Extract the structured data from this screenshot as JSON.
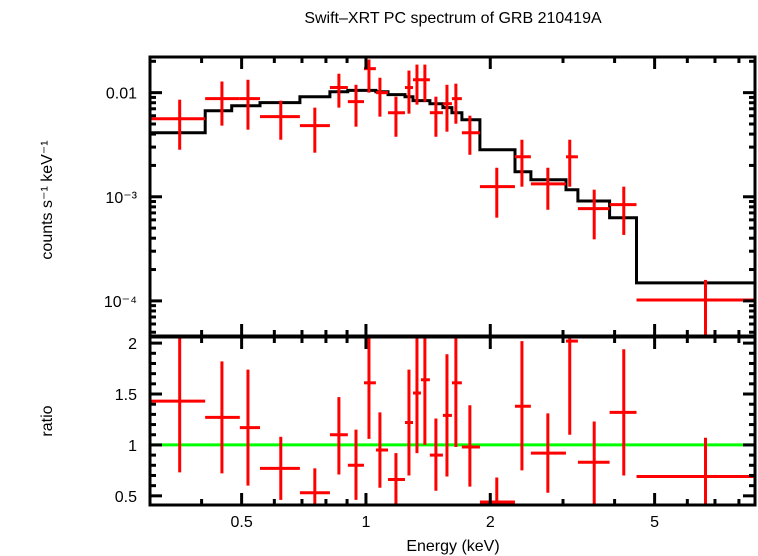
{
  "chart_data": [
    {
      "panel": "spectrum",
      "type": "scatter",
      "title": "Swift–XRT PC spectrum of GRB 210419A",
      "xlabel": "Energy (keV)",
      "ylabel": "counts s⁻¹ keV⁻¹",
      "xscale": "log",
      "yscale": "log",
      "xlim": [
        0.3,
        8.75
      ],
      "ylim": [
        4.6e-05,
        0.022
      ],
      "ytick_labels": [
        {
          "value": 0.01,
          "label": "0.01"
        },
        {
          "value": 0.001,
          "label": "10⁻³"
        },
        {
          "value": 0.0001,
          "label": "10⁻⁴"
        }
      ],
      "series": [
        {
          "name": "data",
          "color": "#ff0000",
          "points": [
            {
              "x": 0.354,
              "xlo": 0.3,
              "xhi": 0.408,
              "y": 0.00562,
              "ylo": 0.00283,
              "yhi": 0.00856
            },
            {
              "x": 0.448,
              "xlo": 0.408,
              "xhi": 0.495,
              "y": 0.00876,
              "ylo": 0.00482,
              "yhi": 0.0128
            },
            {
              "x": 0.518,
              "xlo": 0.495,
              "xhi": 0.554,
              "y": 0.00876,
              "ylo": 0.00441,
              "yhi": 0.0133
            },
            {
              "x": 0.622,
              "xlo": 0.554,
              "xhi": 0.692,
              "y": 0.00588,
              "ylo": 0.00353,
              "yhi": 0.00838
            },
            {
              "x": 0.752,
              "xlo": 0.692,
              "xhi": 0.818,
              "y": 0.00482,
              "ylo": 0.00265,
              "yhi": 0.00718
            },
            {
              "x": 0.86,
              "xlo": 0.818,
              "xhi": 0.904,
              "y": 0.0112,
              "ylo": 0.00718,
              "yhi": 0.0152
            },
            {
              "x": 0.946,
              "xlo": 0.904,
              "xhi": 0.989,
              "y": 0.00819,
              "ylo": 0.00471,
              "yhi": 0.0119
            },
            {
              "x": 1.017,
              "xlo": 0.989,
              "xhi": 1.057,
              "y": 0.017,
              "ylo": 0.01,
              "yhi": 0.0208
            },
            {
              "x": 1.081,
              "xlo": 1.057,
              "xhi": 1.131,
              "y": 0.01,
              "ylo": 0.00588,
              "yhi": 0.0139
            },
            {
              "x": 1.182,
              "xlo": 1.131,
              "xhi": 1.243,
              "y": 0.00642,
              "ylo": 0.00377,
              "yhi": 0.00915
            },
            {
              "x": 1.271,
              "xlo": 1.243,
              "xhi": 1.3,
              "y": 0.0112,
              "ylo": 0.00628,
              "yhi": 0.0163
            },
            {
              "x": 1.329,
              "xlo": 1.3,
              "xhi": 1.359,
              "y": 0.0133,
              "ylo": 0.00767,
              "yhi": 0.0186
            },
            {
              "x": 1.389,
              "xlo": 1.359,
              "xhi": 1.428,
              "y": 0.0133,
              "ylo": 0.00819,
              "yhi": 0.0186
            },
            {
              "x": 1.477,
              "xlo": 1.428,
              "xhi": 1.536,
              "y": 0.00642,
              "ylo": 0.00377,
              "yhi": 0.00915
            },
            {
              "x": 1.571,
              "xlo": 1.536,
              "xhi": 1.615,
              "y": 0.00784,
              "ylo": 0.00422,
              "yhi": 0.0119
            },
            {
              "x": 1.651,
              "xlo": 1.615,
              "xhi": 1.707,
              "y": 0.00876,
              "ylo": 0.00503,
              "yhi": 0.0122
            },
            {
              "x": 1.785,
              "xlo": 1.707,
              "xhi": 1.888,
              "y": 0.00412,
              "ylo": 0.00253,
              "yhi": 0.00601
            },
            {
              "x": 2.074,
              "xlo": 1.888,
              "xhi": 2.295,
              "y": 0.00125,
              "ylo": 0.00063,
              "yhi": 0.0019
            },
            {
              "x": 2.386,
              "xlo": 2.295,
              "xhi": 2.508,
              "y": 0.00242,
              "ylo": 0.00125,
              "yhi": 0.00353
            },
            {
              "x": 2.757,
              "xlo": 2.508,
              "xhi": 3.05,
              "y": 0.00133,
              "ylo": 0.00075,
              "yhi": 0.0019
            },
            {
              "x": 3.115,
              "xlo": 3.05,
              "xhi": 3.26,
              "y": 0.00242,
              "ylo": 0.00125,
              "yhi": 0.00353
            },
            {
              "x": 3.57,
              "xlo": 3.26,
              "xhi": 3.89,
              "y": 0.00077,
              "ylo": 0.00039,
              "yhi": 0.00117
            },
            {
              "x": 4.21,
              "xlo": 3.89,
              "xhi": 4.52,
              "y": 0.00084,
              "ylo": 0.00043,
              "yhi": 0.00125
            },
            {
              "x": 6.64,
              "xlo": 4.52,
              "xhi": 8.75,
              "y": 0.000102,
              "ylo": 4.7e-05,
              "yhi": 0.000159
            }
          ]
        },
        {
          "name": "model",
          "color": "#000000",
          "type": "step",
          "bins": [
            {
              "xlo": 0.3,
              "xhi": 0.408,
              "y": 0.00412
            },
            {
              "xlo": 0.408,
              "xhi": 0.473,
              "y": 0.00671
            },
            {
              "xlo": 0.473,
              "xhi": 0.554,
              "y": 0.0075
            },
            {
              "xlo": 0.554,
              "xhi": 0.692,
              "y": 0.00802
            },
            {
              "xlo": 0.692,
              "xhi": 0.818,
              "y": 0.00915
            },
            {
              "xlo": 0.818,
              "xhi": 0.904,
              "y": 0.0102
            },
            {
              "xlo": 0.904,
              "xhi": 1.057,
              "y": 0.0105
            },
            {
              "xlo": 1.057,
              "xhi": 1.131,
              "y": 0.0102
            },
            {
              "xlo": 1.131,
              "xhi": 1.243,
              "y": 0.00957
            },
            {
              "xlo": 1.243,
              "xhi": 1.3,
              "y": 0.00915
            },
            {
              "xlo": 1.3,
              "xhi": 1.428,
              "y": 0.00838
            },
            {
              "xlo": 1.428,
              "xhi": 1.536,
              "y": 0.00784
            },
            {
              "xlo": 1.536,
              "xhi": 1.615,
              "y": 0.00718
            },
            {
              "xlo": 1.615,
              "xhi": 1.707,
              "y": 0.00642
            },
            {
              "xlo": 1.707,
              "xhi": 1.888,
              "y": 0.0055
            },
            {
              "xlo": 1.888,
              "xhi": 2.295,
              "y": 0.00283
            },
            {
              "xlo": 2.295,
              "xhi": 2.508,
              "y": 0.00174
            },
            {
              "xlo": 2.508,
              "xhi": 3.05,
              "y": 0.00146
            },
            {
              "xlo": 3.05,
              "xhi": 3.26,
              "y": 0.00117
            },
            {
              "xlo": 3.26,
              "xhi": 3.89,
              "y": 0.00091
            },
            {
              "xlo": 3.89,
              "xhi": 4.52,
              "y": 0.00063
            },
            {
              "xlo": 4.52,
              "xhi": 8.75,
              "y": 0.000149
            }
          ]
        }
      ]
    },
    {
      "panel": "ratio",
      "type": "scatter",
      "xlabel": "Energy (keV)",
      "ylabel": "ratio",
      "xscale": "log",
      "yscale": "linear",
      "xlim": [
        0.3,
        8.75
      ],
      "ylim": [
        0.41,
        2.06
      ],
      "xtick_labels": [
        {
          "value": 0.5,
          "label": "0.5"
        },
        {
          "value": 1,
          "label": "1"
        },
        {
          "value": 2,
          "label": "2"
        },
        {
          "value": 5,
          "label": "5"
        }
      ],
      "ytick_labels": [
        {
          "value": 0.5,
          "label": "0.5"
        },
        {
          "value": 1,
          "label": "1"
        },
        {
          "value": 1.5,
          "label": "1.5"
        },
        {
          "value": 2,
          "label": "2"
        }
      ],
      "reference_line": {
        "y": 1,
        "color": "#00ff00"
      },
      "series": [
        {
          "name": "ratio",
          "color": "#ff0000",
          "points": [
            {
              "x": 0.354,
              "xlo": 0.3,
              "xhi": 0.408,
              "y": 1.43,
              "ylo": 0.73,
              "yhi": 2.2
            },
            {
              "x": 0.448,
              "xlo": 0.408,
              "xhi": 0.495,
              "y": 1.27,
              "ylo": 0.72,
              "yhi": 1.82
            },
            {
              "x": 0.518,
              "xlo": 0.495,
              "xhi": 0.554,
              "y": 1.17,
              "ylo": 0.6,
              "yhi": 1.74
            },
            {
              "x": 0.622,
              "xlo": 0.554,
              "xhi": 0.692,
              "y": 0.77,
              "ylo": 0.46,
              "yhi": 1.08
            },
            {
              "x": 0.752,
              "xlo": 0.692,
              "xhi": 0.818,
              "y": 0.53,
              "ylo": 0.35,
              "yhi": 0.77
            },
            {
              "x": 0.86,
              "xlo": 0.818,
              "xhi": 0.904,
              "y": 1.1,
              "ylo": 0.71,
              "yhi": 1.47
            },
            {
              "x": 0.946,
              "xlo": 0.904,
              "xhi": 0.989,
              "y": 0.8,
              "ylo": 0.46,
              "yhi": 1.15
            },
            {
              "x": 1.017,
              "xlo": 0.989,
              "xhi": 1.057,
              "y": 1.61,
              "ylo": 1.06,
              "yhi": 2.2
            },
            {
              "x": 1.081,
              "xlo": 1.057,
              "xhi": 1.131,
              "y": 0.95,
              "ylo": 0.58,
              "yhi": 1.32
            },
            {
              "x": 1.182,
              "xlo": 1.131,
              "xhi": 1.243,
              "y": 0.66,
              "ylo": 0.35,
              "yhi": 0.92
            },
            {
              "x": 1.271,
              "xlo": 1.243,
              "xhi": 1.3,
              "y": 1.22,
              "ylo": 0.7,
              "yhi": 1.74
            },
            {
              "x": 1.329,
              "xlo": 1.3,
              "xhi": 1.359,
              "y": 1.51,
              "ylo": 0.92,
              "yhi": 2.2
            },
            {
              "x": 1.389,
              "xlo": 1.359,
              "xhi": 1.428,
              "y": 1.64,
              "ylo": 1.0,
              "yhi": 2.2
            },
            {
              "x": 1.477,
              "xlo": 1.428,
              "xhi": 1.536,
              "y": 0.9,
              "ylo": 0.55,
              "yhi": 1.26
            },
            {
              "x": 1.571,
              "xlo": 1.536,
              "xhi": 1.615,
              "y": 1.29,
              "ylo": 0.69,
              "yhi": 1.89
            },
            {
              "x": 1.651,
              "xlo": 1.615,
              "xhi": 1.707,
              "y": 1.61,
              "ylo": 0.98,
              "yhi": 2.2
            },
            {
              "x": 1.785,
              "xlo": 1.707,
              "xhi": 1.888,
              "y": 0.98,
              "ylo": 0.59,
              "yhi": 1.39
            },
            {
              "x": 2.074,
              "xlo": 1.888,
              "xhi": 2.295,
              "y": 0.44,
              "ylo": 0.3,
              "yhi": 0.68
            },
            {
              "x": 2.386,
              "xlo": 2.295,
              "xhi": 2.508,
              "y": 1.38,
              "ylo": 0.75,
              "yhi": 2.02
            },
            {
              "x": 2.757,
              "xlo": 2.508,
              "xhi": 3.05,
              "y": 0.92,
              "ylo": 0.53,
              "yhi": 1.31
            },
            {
              "x": 3.115,
              "xlo": 3.05,
              "xhi": 3.26,
              "y": 2.02,
              "ylo": 1.1,
              "yhi": 2.2
            },
            {
              "x": 3.57,
              "xlo": 3.26,
              "xhi": 3.89,
              "y": 0.83,
              "ylo": 0.35,
              "yhi": 1.23
            },
            {
              "x": 4.21,
              "xlo": 3.89,
              "xhi": 4.52,
              "y": 1.32,
              "ylo": 0.7,
              "yhi": 1.94
            },
            {
              "x": 6.64,
              "xlo": 4.52,
              "xhi": 8.75,
              "y": 0.69,
              "ylo": 0.35,
              "yhi": 1.07
            }
          ]
        }
      ]
    }
  ]
}
